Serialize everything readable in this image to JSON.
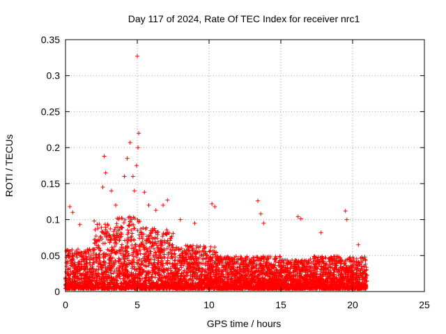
{
  "chart_data": {
    "type": "scatter",
    "title": "Day 117 of 2024, Rate Of TEC Index for receiver nrc1",
    "xlabel": "GPS time / hours",
    "ylabel": "ROTI / TECUs",
    "xlim": [
      0,
      25
    ],
    "ylim": [
      0,
      0.35
    ],
    "xticks": [
      0,
      5,
      10,
      15,
      20,
      25
    ],
    "xtick_labels": [
      "0",
      "5",
      "10",
      "15",
      "20",
      "25"
    ],
    "yticks": [
      0,
      0.05,
      0.1,
      0.15,
      0.2,
      0.25,
      0.3,
      0.35
    ],
    "ytick_labels": [
      "0",
      "0.05",
      "0.1",
      "0.15",
      "0.2",
      "0.25",
      "0.3",
      "0.35"
    ],
    "grid": true,
    "marker": "plus",
    "color": "#ff0000",
    "data_x_range": [
      0,
      21
    ],
    "series_note_points": [
      {
        "x": 0.3,
        "y": 0.118
      },
      {
        "x": 0.5,
        "y": 0.11
      },
      {
        "x": 1.0,
        "y": 0.093
      },
      {
        "x": 2.0,
        "y": 0.098
      },
      {
        "x": 2.6,
        "y": 0.145
      },
      {
        "x": 2.7,
        "y": 0.188
      },
      {
        "x": 2.8,
        "y": 0.165
      },
      {
        "x": 3.2,
        "y": 0.14
      },
      {
        "x": 3.5,
        "y": 0.12
      },
      {
        "x": 4.1,
        "y": 0.16
      },
      {
        "x": 4.3,
        "y": 0.185
      },
      {
        "x": 4.5,
        "y": 0.207
      },
      {
        "x": 4.7,
        "y": 0.16
      },
      {
        "x": 4.8,
        "y": 0.14
      },
      {
        "x": 4.95,
        "y": 0.175
      },
      {
        "x": 5.0,
        "y": 0.327
      },
      {
        "x": 5.1,
        "y": 0.22
      },
      {
        "x": 5.05,
        "y": 0.2
      },
      {
        "x": 5.5,
        "y": 0.138
      },
      {
        "x": 5.8,
        "y": 0.12
      },
      {
        "x": 6.3,
        "y": 0.113
      },
      {
        "x": 6.8,
        "y": 0.12
      },
      {
        "x": 7.1,
        "y": 0.127
      },
      {
        "x": 8.0,
        "y": 0.1
      },
      {
        "x": 9.0,
        "y": 0.095
      },
      {
        "x": 10.2,
        "y": 0.122
      },
      {
        "x": 10.4,
        "y": 0.118
      },
      {
        "x": 13.4,
        "y": 0.126
      },
      {
        "x": 13.6,
        "y": 0.108
      },
      {
        "x": 13.8,
        "y": 0.095
      },
      {
        "x": 16.2,
        "y": 0.104
      },
      {
        "x": 16.4,
        "y": 0.101
      },
      {
        "x": 17.8,
        "y": 0.082
      },
      {
        "x": 19.5,
        "y": 0.112
      },
      {
        "x": 19.6,
        "y": 0.1
      },
      {
        "x": 20.4,
        "y": 0.065
      }
    ]
  }
}
